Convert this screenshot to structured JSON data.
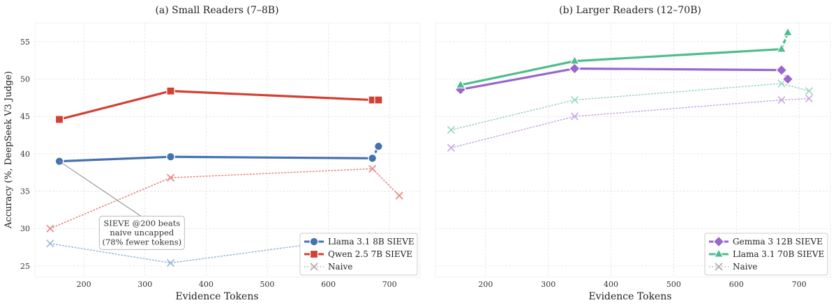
{
  "figure": {
    "ylabel": "Accuracy (%, DeepSeek V3 Judge)",
    "colors": {
      "llama8b": "#4472b0",
      "qwen7b": "#d43f33",
      "gemma12b": "#9966cc",
      "llama70b": "#4dbd8e",
      "naive_left_blue": "#9db8dc",
      "naive_left_red": "#e88a86",
      "naive_right_purple": "#c9abe4",
      "naive_right_green": "#9ed9bd",
      "grid": "#e3e3e3",
      "annotation": "#888888"
    }
  },
  "chart_data": [
    {
      "type": "line",
      "title": "(a) Small Readers (7–8B)",
      "xlabel": "Evidence Tokens",
      "ylabel": "Accuracy (%, DeepSeek V3 Judge)",
      "xlim": [
        120,
        750
      ],
      "ylim": [
        23.5,
        57.5
      ],
      "xticks": [
        200,
        300,
        400,
        500,
        600,
        700
      ],
      "yticks": [
        25,
        30,
        35,
        40,
        45,
        50,
        55
      ],
      "grid": true,
      "legend_position": "bottom-right",
      "legend": [
        {
          "label": "Llama 3.1 8B SIEVE",
          "color": "#4472b0",
          "marker": "circle",
          "style": "solid"
        },
        {
          "label": "Qwen 2.5 7B SIEVE",
          "color": "#d43f33",
          "marker": "square",
          "style": "solid"
        },
        {
          "label": "Naive",
          "color": "#aaaaaa",
          "marker": "x",
          "style": "dotted"
        }
      ],
      "series": [
        {
          "name": "Llama 3.1 8B SIEVE",
          "role": "sieve",
          "color": "#4472b0",
          "marker": "circle",
          "x": [
            160,
            342,
            672,
            682
          ],
          "y": [
            39.0,
            39.6,
            39.4,
            41.0
          ],
          "dashed_last": true
        },
        {
          "name": "Qwen 2.5 7B SIEVE",
          "role": "sieve",
          "color": "#d43f33",
          "marker": "square",
          "x": [
            160,
            342,
            672,
            682
          ],
          "y": [
            44.6,
            48.4,
            47.2,
            47.2
          ],
          "dashed_last": false
        },
        {
          "role": "naive",
          "color": "#9db8dc",
          "marker": "x",
          "x": [
            145,
            342,
            672
          ],
          "y": [
            28.0,
            25.4,
            29.0
          ],
          "dashed_last": false
        },
        {
          "role": "naive",
          "color": "#e88a86",
          "marker": "x",
          "x": [
            145,
            342,
            672,
            716
          ],
          "y": [
            30.0,
            36.8,
            38.0,
            34.4
          ],
          "dashed_last": false
        }
      ],
      "annotation": {
        "lines": [
          "SIEVE @200 beats",
          "naive uncapped",
          "(78% fewer tokens)"
        ],
        "from": [
          160,
          39.0
        ],
        "to": [
          295,
          31.2
        ]
      }
    },
    {
      "type": "line",
      "title": "(b) Larger Readers (12–70B)",
      "xlabel": "Evidence Tokens",
      "xlim": [
        120,
        750
      ],
      "ylim": [
        23.5,
        57.5
      ],
      "xticks": [
        200,
        300,
        400,
        500,
        600,
        700
      ],
      "yticks": [
        25,
        30,
        35,
        40,
        45,
        50,
        55
      ],
      "grid": true,
      "legend_position": "bottom-right",
      "legend": [
        {
          "label": "Gemma 3 12B SIEVE",
          "color": "#9966cc",
          "marker": "diamond",
          "style": "solid"
        },
        {
          "label": "Llama 3.1 70B SIEVE",
          "color": "#4dbd8e",
          "marker": "triangle",
          "style": "solid"
        },
        {
          "label": "Naive",
          "color": "#aaaaaa",
          "marker": "x",
          "style": "dotted"
        }
      ],
      "series": [
        {
          "name": "Gemma 3 12B SIEVE",
          "role": "sieve",
          "color": "#9966cc",
          "marker": "diamond",
          "x": [
            160,
            342,
            672,
            682
          ],
          "y": [
            48.6,
            51.4,
            51.2,
            50.0
          ],
          "dashed_last": true
        },
        {
          "name": "Llama 3.1 70B SIEVE",
          "role": "sieve",
          "color": "#4dbd8e",
          "marker": "triangle",
          "x": [
            160,
            342,
            672,
            682
          ],
          "y": [
            49.2,
            52.4,
            54.0,
            56.2
          ],
          "dashed_last": true
        },
        {
          "role": "naive",
          "color": "#c9abe4",
          "marker": "x",
          "x": [
            145,
            342,
            672,
            716
          ],
          "y": [
            40.8,
            45.0,
            47.2,
            47.4
          ],
          "dashed_last": false
        },
        {
          "role": "naive",
          "color": "#9ed9bd",
          "marker": "x",
          "x": [
            145,
            342,
            672,
            716
          ],
          "y": [
            43.2,
            47.2,
            49.4,
            48.4
          ],
          "dashed_last": false
        }
      ]
    }
  ]
}
